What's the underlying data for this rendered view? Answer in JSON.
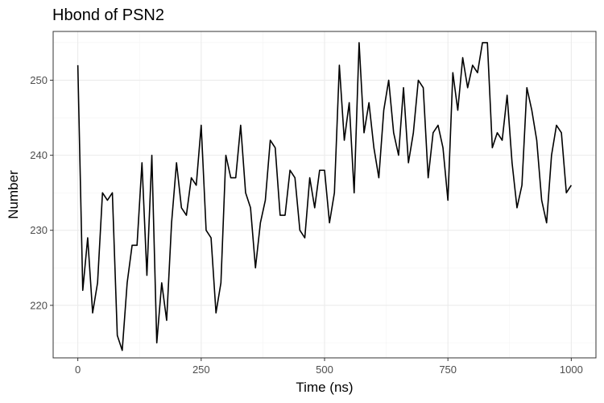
{
  "chart_data": {
    "type": "line",
    "title": "Hbond of PSN2",
    "xlabel": "Time (ns)",
    "ylabel": "Number",
    "xlim": [
      -50,
      1050
    ],
    "ylim": [
      213,
      256.5
    ],
    "x_major_ticks": [
      0,
      250,
      500,
      750,
      1000
    ],
    "x_minor_ticks": [
      125,
      375,
      625,
      875
    ],
    "y_major_ticks": [
      220,
      230,
      240,
      250
    ],
    "y_minor_ticks": [
      215,
      225,
      235,
      245,
      255
    ],
    "grid": true,
    "legend": "none",
    "line_color": "#000000",
    "series": [
      {
        "x": [
          0,
          10,
          20,
          30,
          40,
          50,
          60,
          70,
          80,
          90,
          100,
          110,
          120,
          130,
          140,
          150,
          160,
          170,
          180,
          190,
          200,
          210,
          220,
          230,
          240,
          250,
          260,
          270,
          280,
          290,
          300,
          310,
          320,
          330,
          340,
          350,
          360,
          370,
          380,
          390,
          400,
          410,
          420,
          430,
          440,
          450,
          460,
          470,
          480,
          490,
          500,
          510,
          520,
          530,
          540,
          550,
          560,
          570,
          580,
          590,
          600,
          610,
          620,
          630,
          640,
          650,
          660,
          670,
          680,
          690,
          700,
          710,
          720,
          730,
          740,
          750,
          760,
          770,
          780,
          790,
          800,
          810,
          820,
          830,
          840,
          850,
          860,
          870,
          880,
          890,
          900,
          910,
          920,
          930,
          940,
          950,
          960,
          970,
          980,
          990,
          1000
        ],
        "values": [
          252,
          222,
          229,
          219,
          223,
          235,
          234,
          235,
          216,
          214,
          223,
          228,
          228,
          239,
          224,
          240,
          215,
          223,
          218,
          231,
          239,
          233,
          232,
          237,
          236,
          244,
          230,
          229,
          219,
          223,
          240,
          237,
          237,
          244,
          235,
          233,
          225,
          231,
          234,
          242,
          241,
          232,
          232,
          238,
          237,
          230,
          229,
          237,
          233,
          238,
          238,
          231,
          235,
          252,
          242,
          247,
          235,
          255,
          243,
          247,
          241,
          237,
          246,
          250,
          243,
          240,
          249,
          239,
          243,
          250,
          249,
          237,
          243,
          244,
          241,
          234,
          251,
          246,
          253,
          249,
          252,
          251,
          255,
          255,
          241,
          243,
          242,
          248,
          239,
          233,
          236,
          249,
          246,
          242,
          234,
          231,
          240,
          244,
          243,
          235,
          236
        ]
      }
    ]
  }
}
